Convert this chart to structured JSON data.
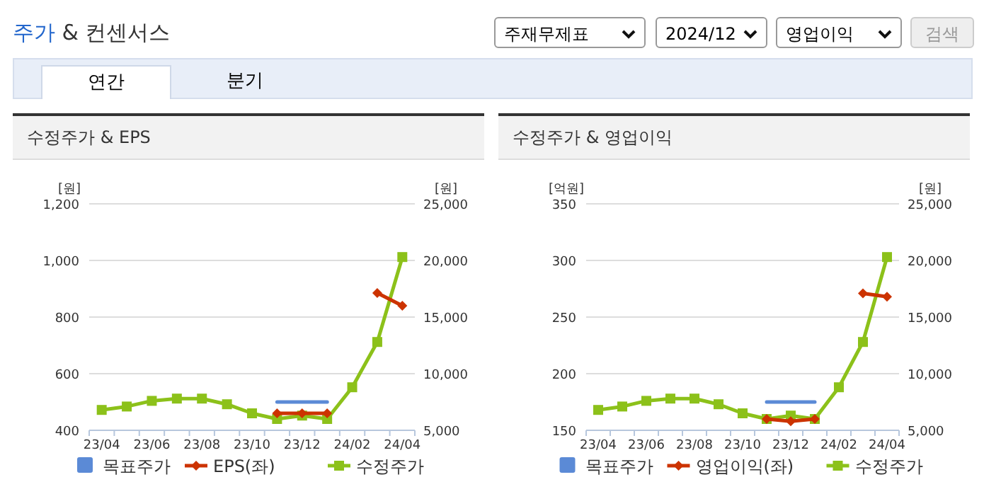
{
  "chart_data": [
    {
      "type": "line",
      "title": "수정주가 & EPS",
      "annotations": [
        "주가 & 컨센서스",
        "주재무제표",
        "2024/12",
        "영업이익",
        "검색",
        "연간",
        "분기"
      ],
      "categories": [
        "23/04",
        null,
        "23/06",
        null,
        "23/08",
        null,
        "23/10",
        null,
        "23/12",
        null,
        "24/02",
        null,
        "24/04"
      ],
      "ylabel": "[원]",
      "y2label": "[원]",
      "ylim": [
        400,
        1200
      ],
      "yticks": [
        400,
        600,
        800,
        {
          "value": 1000,
          "label": "1,000"
        },
        {
          "value": 1200,
          "label": "1,200"
        }
      ],
      "y2lim": [
        5000,
        25000
      ],
      "y2ticks": [
        {
          "value": 5000,
          "label": "5,000"
        },
        {
          "value": 10000,
          "label": "10,000"
        },
        {
          "value": 15000,
          "label": "15,000"
        },
        {
          "value": 20000,
          "label": "20,000"
        },
        {
          "value": 25000,
          "label": "25,000"
        }
      ],
      "grid": "y",
      "legend": "bottom",
      "series": [
        {
          "name": "목표주가",
          "color": "#5b8ad6",
          "axis": "y2",
          "marker": "none",
          "values": [
            null,
            null,
            null,
            null,
            null,
            null,
            null,
            7500,
            7500,
            7500,
            null,
            null,
            null
          ]
        },
        {
          "name": "EPS(좌)",
          "color": "#cc3300",
          "marker": "diamond",
          "values": [
            null,
            null,
            null,
            null,
            null,
            null,
            null,
            460,
            460,
            460,
            null,
            885,
            840
          ]
        },
        {
          "name": "수정주가",
          "color": "#8cc11a",
          "axis": "y2",
          "marker": "square",
          "values": [
            6800,
            7100,
            7600,
            7800,
            7800,
            7300,
            6500,
            6000,
            6300,
            6000,
            8800,
            12800,
            20300
          ]
        }
      ]
    },
    {
      "type": "line",
      "title": "수정주가 & 영업이익",
      "categories": [
        "23/04",
        null,
        "23/06",
        null,
        "23/08",
        null,
        "23/10",
        null,
        "23/12",
        null,
        "24/02",
        null,
        "24/04"
      ],
      "ylabel": "[억원]",
      "y2label": "[원]",
      "ylim": [
        150,
        350
      ],
      "yticks": [
        150,
        200,
        250,
        300,
        350
      ],
      "y2lim": [
        5000,
        25000
      ],
      "y2ticks": [
        {
          "value": 5000,
          "label": "5,000"
        },
        {
          "value": 10000,
          "label": "10,000"
        },
        {
          "value": 15000,
          "label": "15,000"
        },
        {
          "value": 20000,
          "label": "20,000"
        },
        {
          "value": 25000,
          "label": "25,000"
        }
      ],
      "grid": "y",
      "legend": "bottom",
      "series": [
        {
          "name": "목표주가",
          "color": "#5b8ad6",
          "axis": "y2",
          "marker": "none",
          "values": [
            null,
            null,
            null,
            null,
            null,
            null,
            null,
            7500,
            7500,
            7500,
            null,
            null,
            null
          ]
        },
        {
          "name": "영업이익(좌)",
          "color": "#cc3300",
          "marker": "diamond",
          "values": [
            null,
            null,
            null,
            null,
            null,
            null,
            null,
            160,
            158,
            160,
            null,
            271,
            268
          ]
        },
        {
          "name": "수정주가",
          "color": "#8cc11a",
          "axis": "y2",
          "marker": "square",
          "values": [
            6800,
            7100,
            7600,
            7800,
            7800,
            7300,
            6500,
            6000,
            6300,
            6000,
            8800,
            12800,
            20300
          ]
        }
      ]
    }
  ]
}
